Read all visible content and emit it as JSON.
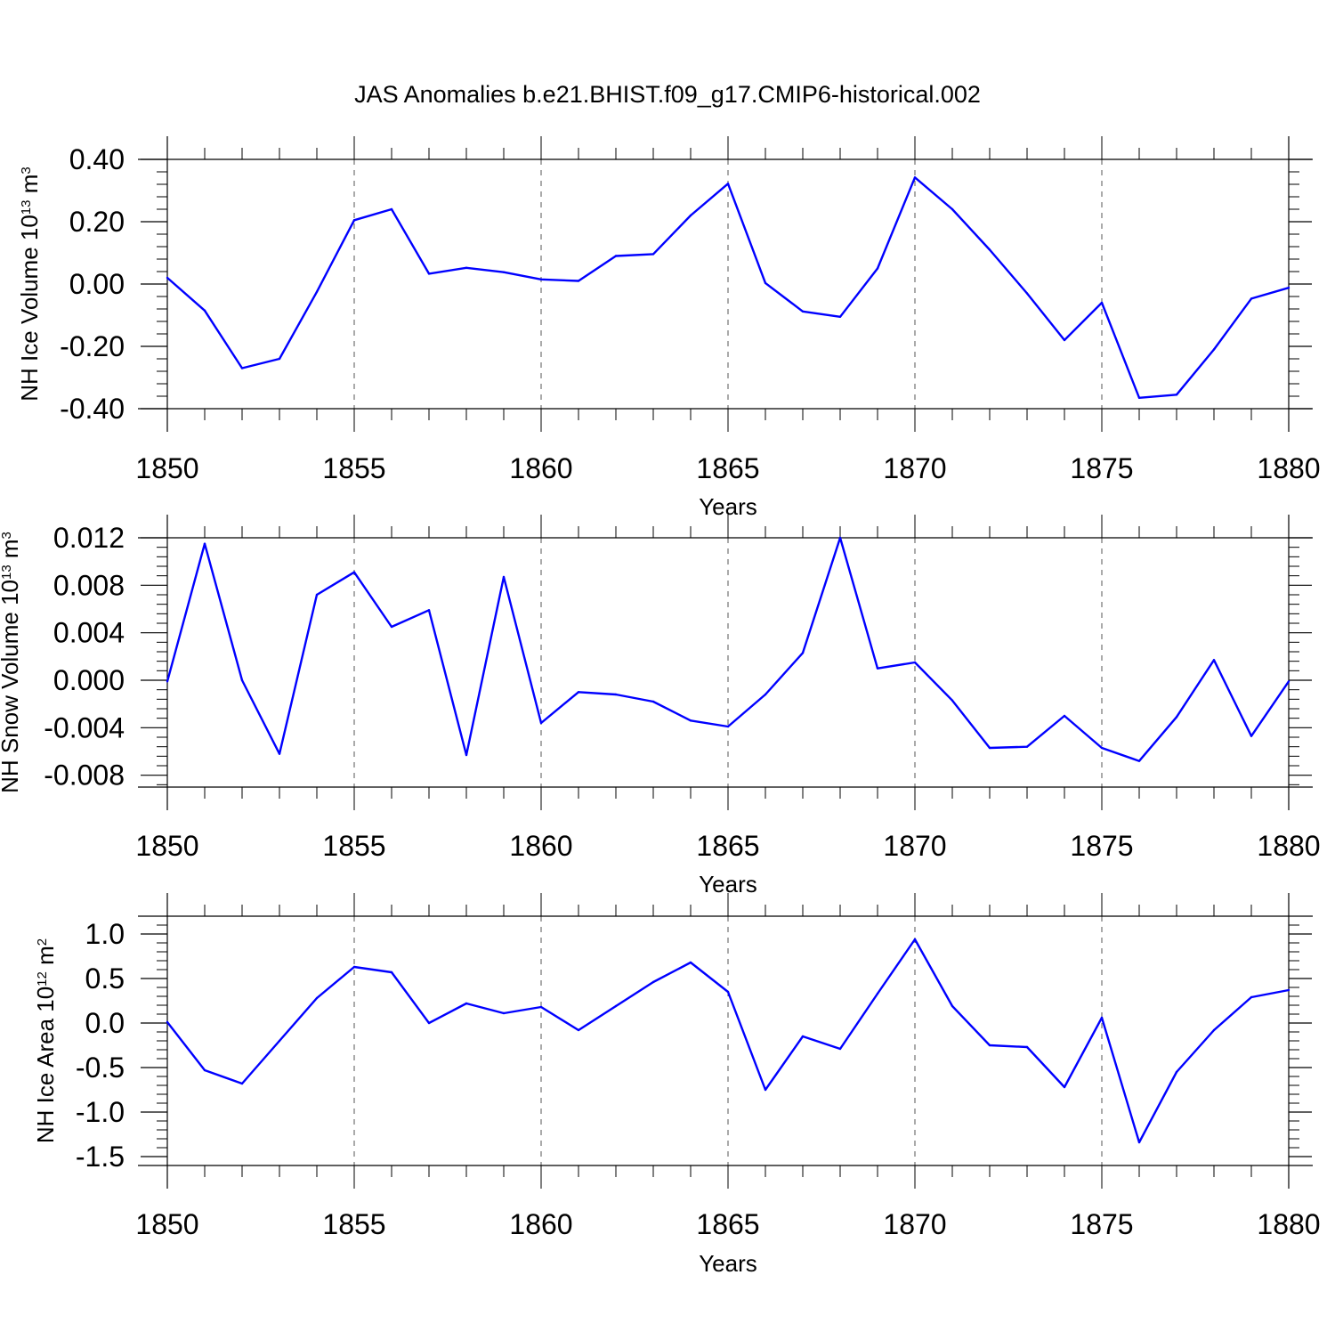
{
  "figure_title": "JAS Anomalies b.e21.BHIST.f09_g17.CMIP6-historical.002",
  "colors": {
    "line": "#0000ff",
    "axis": "#000000",
    "grid": "#555555"
  },
  "chart_data": [
    {
      "type": "line",
      "ylabel": "NH Ice Volume 10",
      "ylabel_exp": "13",
      "ylabel_unit": " m",
      "ylabel_unit_exp": "3",
      "xlabel": "Years",
      "xlim": [
        1850,
        1880
      ],
      "ylim": [
        -0.4,
        0.4
      ],
      "yticks": [
        -0.4,
        -0.2,
        0.0,
        0.2,
        0.4
      ],
      "ytick_labels": [
        "-0.40",
        "-0.20",
        "0.00",
        "0.20",
        "0.40"
      ],
      "xticks": [
        1850,
        1855,
        1860,
        1865,
        1870,
        1875,
        1880
      ],
      "xtick_labels": [
        "1850",
        "1855",
        "1860",
        "1865",
        "1870",
        "1875",
        "1880"
      ],
      "x": [
        1850,
        1851,
        1852,
        1853,
        1854,
        1855,
        1856,
        1857,
        1858,
        1859,
        1860,
        1861,
        1862,
        1863,
        1864,
        1865,
        1866,
        1867,
        1868,
        1869,
        1870,
        1871,
        1872,
        1873,
        1874,
        1875,
        1876,
        1877,
        1878,
        1879,
        1880
      ],
      "values": [
        0.02,
        -0.085,
        -0.27,
        -0.24,
        -0.025,
        0.205,
        0.24,
        0.033,
        0.052,
        0.038,
        0.015,
        0.01,
        0.09,
        0.096,
        0.22,
        0.322,
        0.003,
        -0.088,
        -0.105,
        0.05,
        0.342,
        0.24,
        0.11,
        -0.03,
        -0.18,
        -0.06,
        -0.365,
        -0.355,
        -0.21,
        -0.047,
        -0.012
      ]
    },
    {
      "type": "line",
      "ylabel": "NH Snow Volume 10",
      "ylabel_exp": "13",
      "ylabel_unit": " m",
      "ylabel_unit_exp": "3",
      "xlabel": "Years",
      "xlim": [
        1850,
        1880
      ],
      "ylim": [
        -0.009,
        0.012
      ],
      "yticks": [
        -0.008,
        -0.004,
        0.0,
        0.004,
        0.008,
        0.012
      ],
      "ytick_labels": [
        "-0.008",
        "-0.004",
        "0.000",
        "0.004",
        "0.008",
        "0.012"
      ],
      "xticks": [
        1850,
        1855,
        1860,
        1865,
        1870,
        1875,
        1880
      ],
      "xtick_labels": [
        "1850",
        "1855",
        "1860",
        "1865",
        "1870",
        "1875",
        "1880"
      ],
      "x": [
        1850,
        1851,
        1852,
        1853,
        1854,
        1855,
        1856,
        1857,
        1858,
        1859,
        1860,
        1861,
        1862,
        1863,
        1864,
        1865,
        1866,
        1867,
        1868,
        1869,
        1870,
        1871,
        1872,
        1873,
        1874,
        1875,
        1876,
        1877,
        1878,
        1879,
        1880
      ],
      "values": [
        -0.0001,
        0.0115,
        0.0,
        -0.0062,
        0.0072,
        0.0091,
        0.0045,
        0.0059,
        -0.0063,
        0.0087,
        -0.0036,
        -0.001,
        -0.0012,
        -0.0018,
        -0.0034,
        -0.0039,
        -0.0012,
        0.0023,
        0.012,
        0.001,
        0.0015,
        -0.0017,
        -0.0057,
        -0.0056,
        -0.003,
        -0.0057,
        -0.0068,
        -0.0031,
        0.0017,
        -0.0047,
        -0.0001
      ]
    },
    {
      "type": "line",
      "ylabel": "NH Ice Area 10",
      "ylabel_exp": "12",
      "ylabel_unit": " m",
      "ylabel_unit_exp": "2",
      "xlabel": "Years",
      "xlim": [
        1850,
        1880
      ],
      "ylim": [
        -1.6,
        1.2
      ],
      "yticks": [
        -1.5,
        -1.0,
        -0.5,
        0.0,
        0.5,
        1.0
      ],
      "ytick_labels": [
        "-1.5",
        "-1.0",
        "-0.5",
        "0.0",
        "0.5",
        "1.0"
      ],
      "xticks": [
        1850,
        1855,
        1860,
        1865,
        1870,
        1875,
        1880
      ],
      "xtick_labels": [
        "1850",
        "1855",
        "1860",
        "1865",
        "1870",
        "1875",
        "1880"
      ],
      "x": [
        1850,
        1851,
        1852,
        1853,
        1854,
        1855,
        1856,
        1857,
        1858,
        1859,
        1860,
        1861,
        1862,
        1863,
        1864,
        1865,
        1866,
        1867,
        1868,
        1869,
        1870,
        1871,
        1872,
        1873,
        1874,
        1875,
        1876,
        1877,
        1878,
        1879,
        1880
      ],
      "values": [
        0.01,
        -0.53,
        -0.68,
        -0.2,
        0.28,
        0.63,
        0.57,
        0.0,
        0.22,
        0.11,
        0.18,
        -0.08,
        0.19,
        0.46,
        0.68,
        0.35,
        -0.75,
        -0.15,
        -0.29,
        0.33,
        0.94,
        0.19,
        -0.25,
        -0.27,
        -0.72,
        0.06,
        -1.34,
        -0.55,
        -0.08,
        0.29,
        0.37
      ]
    }
  ]
}
